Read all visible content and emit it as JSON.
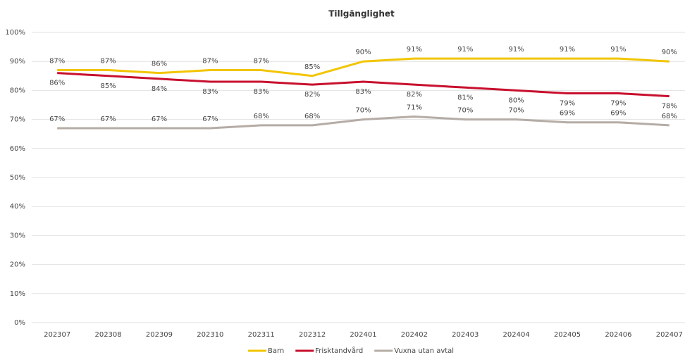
{
  "chart_data": {
    "type": "line",
    "title": "Tillgänglighet",
    "categories": [
      "202307",
      "202308",
      "202309",
      "202310",
      "202311",
      "202312",
      "202401",
      "202402",
      "202403",
      "202404",
      "202405",
      "202406",
      "202407"
    ],
    "series": [
      {
        "name": "Barn",
        "color": "#f2c500",
        "values": [
          87,
          87,
          86,
          87,
          87,
          85,
          90,
          91,
          91,
          91,
          91,
          91,
          90
        ],
        "value_labels": [
          "87%",
          "87%",
          "86%",
          "87%",
          "87%",
          "85%",
          "90%",
          "91%",
          "91%",
          "91%",
          "91%",
          "91%",
          "90%"
        ]
      },
      {
        "name": "Frisktandvård",
        "color": "#c8102e",
        "values": [
          86,
          85,
          84,
          83,
          83,
          82,
          83,
          82,
          81,
          80,
          79,
          79,
          78
        ],
        "value_labels": [
          "86%",
          "85%",
          "84%",
          "83%",
          "83%",
          "82%",
          "83%",
          "82%",
          "81%",
          "80%",
          "79%",
          "79%",
          "78%"
        ]
      },
      {
        "name": "Vuxna utan avtal",
        "color": "#b5aca6",
        "values": [
          67,
          67,
          67,
          67,
          68,
          68,
          70,
          71,
          70,
          70,
          69,
          69,
          68
        ],
        "value_labels": [
          "67%",
          "67%",
          "67%",
          "67%",
          "68%",
          "68%",
          "70%",
          "71%",
          "70%",
          "70%",
          "69%",
          "69%",
          "68%"
        ]
      }
    ],
    "ylim": [
      0,
      100
    ],
    "yticks": [
      {
        "value": 0,
        "label": "0%"
      },
      {
        "value": 10,
        "label": "10%"
      },
      {
        "value": 20,
        "label": "20%"
      },
      {
        "value": 30,
        "label": "30%"
      },
      {
        "value": 40,
        "label": "40%"
      },
      {
        "value": 50,
        "label": "50%"
      },
      {
        "value": 60,
        "label": "60%"
      },
      {
        "value": 70,
        "label": "70%"
      },
      {
        "value": 80,
        "label": "80%"
      },
      {
        "value": 90,
        "label": "90%"
      },
      {
        "value": 100,
        "label": "100%"
      }
    ],
    "grid": true
  }
}
